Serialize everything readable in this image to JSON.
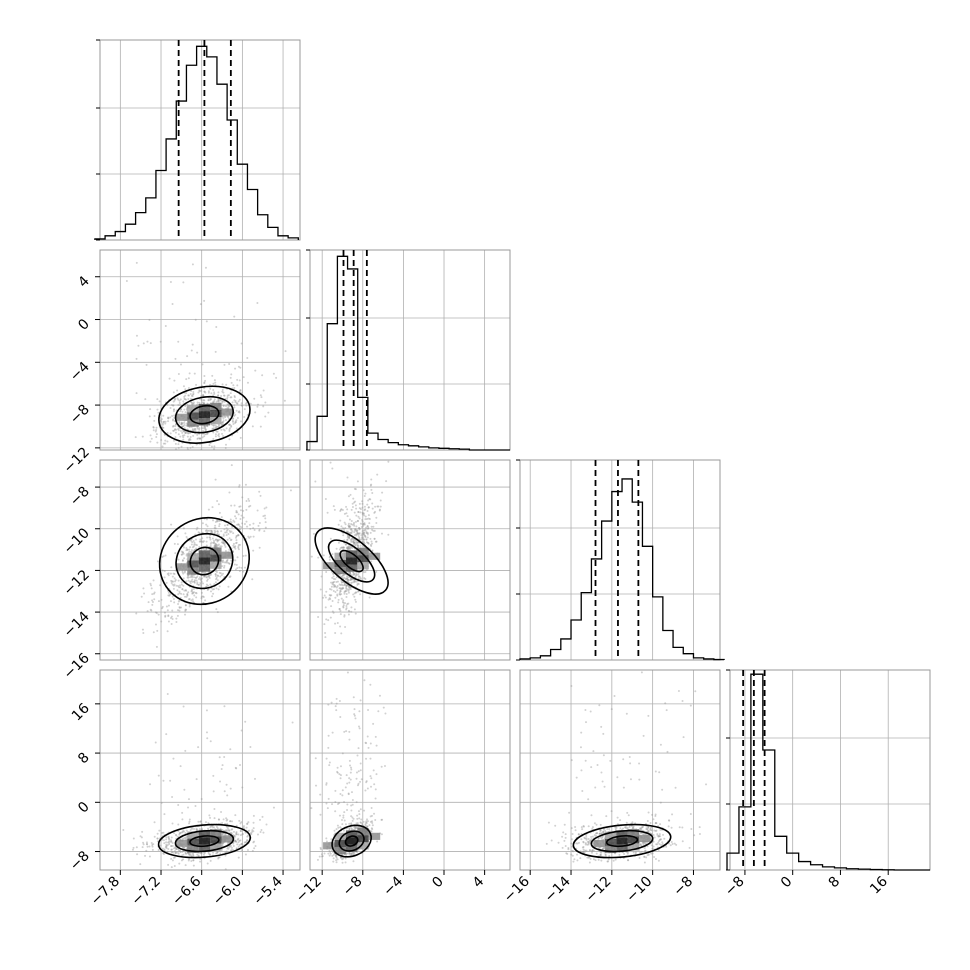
{
  "figure": {
    "type": "corner-plot",
    "colors": {
      "ink": "#000000",
      "grid": "#b0b0b0",
      "frame": "#999999",
      "scatter": "#9a9a9a"
    },
    "grid": true
  },
  "chart_data": [
    {
      "type": "histogram",
      "panel": "p1-hist",
      "row": 0,
      "col": 0,
      "xlim": [
        -8.1,
        -5.15
      ],
      "x": [
        -8.1,
        -7.95,
        -7.8,
        -7.65,
        -7.5,
        -7.35,
        -7.2,
        -7.05,
        -6.9,
        -6.75,
        -6.6,
        -6.45,
        -6.3,
        -6.15,
        -6.0,
        -5.85,
        -5.7,
        -5.55,
        -5.4,
        -5.25
      ],
      "values": [
        0.005,
        0.02,
        0.04,
        0.075,
        0.13,
        0.2,
        0.33,
        0.48,
        0.66,
        0.83,
        0.92,
        0.87,
        0.74,
        0.57,
        0.36,
        0.24,
        0.12,
        0.06,
        0.02,
        0.01
      ],
      "quantiles": [
        -6.94,
        -6.56,
        -6.17
      ]
    },
    {
      "type": "histogram",
      "panel": "p2-hist",
      "row": 1,
      "col": 1,
      "xlim": [
        -13.2,
        6.5
      ],
      "x": [
        -13.0,
        -12.0,
        -11.0,
        -10.0,
        -9.0,
        -8.0,
        -7.0,
        -6.0,
        -5.0,
        -4.0,
        -3.0,
        -2.0,
        -1.0,
        0.0,
        1.0,
        2.0,
        3.0,
        4.0,
        5.0,
        6.0
      ],
      "values": [
        0.04,
        0.16,
        0.6,
        0.92,
        0.86,
        0.25,
        0.08,
        0.05,
        0.035,
        0.025,
        0.02,
        0.015,
        0.01,
        0.008,
        0.006,
        0.004,
        0.0,
        0.0,
        0.0,
        0.0
      ],
      "quantiles": [
        -9.9,
        -8.9,
        -7.6
      ]
    },
    {
      "type": "histogram",
      "panel": "p3-hist",
      "row": 2,
      "col": 2,
      "xlim": [
        -16.5,
        -6.7
      ],
      "x": [
        -16.25,
        -15.75,
        -15.25,
        -14.75,
        -14.25,
        -13.75,
        -13.25,
        -12.75,
        -12.25,
        -11.75,
        -11.25,
        -10.75,
        -10.25,
        -9.75,
        -9.25,
        -8.75,
        -8.25,
        -7.75,
        -7.25,
        -6.75
      ],
      "values": [
        0.005,
        0.01,
        0.02,
        0.05,
        0.1,
        0.19,
        0.32,
        0.48,
        0.66,
        0.8,
        0.86,
        0.75,
        0.54,
        0.3,
        0.14,
        0.06,
        0.03,
        0.01,
        0.005,
        0.002
      ],
      "quantiles": [
        -12.8,
        -11.7,
        -10.7
      ]
    },
    {
      "type": "histogram",
      "panel": "p4-hist",
      "row": 3,
      "col": 3,
      "xlim": [
        -10.5,
        23.0
      ],
      "x": [
        -10.0,
        -8.0,
        -6.0,
        -4.0,
        -2.0,
        0.0,
        2.0,
        4.0,
        6.0,
        8.0,
        10.0,
        12.0,
        14.0,
        16.0,
        18.0,
        20.0,
        22.0
      ],
      "values": [
        0.08,
        0.3,
        0.93,
        0.57,
        0.16,
        0.08,
        0.04,
        0.025,
        0.015,
        0.01,
        0.006,
        0.004,
        0.002,
        0.001,
        0.0,
        0.0,
        0.0
      ],
      "quantiles": [
        -8.3,
        -6.5,
        -4.7
      ]
    },
    {
      "type": "scatter",
      "panel": "p2-vs-p1",
      "row": 1,
      "col": 0,
      "xlim": [
        -8.1,
        -5.15
      ],
      "ylim": [
        -12.2,
        6.5
      ],
      "center": [
        -6.56,
        -8.9
      ],
      "spread": [
        0.34,
        1.4
      ],
      "rho": 0.3,
      "tail": 0.1
    },
    {
      "type": "scatter",
      "panel": "p3-vs-p1",
      "row": 2,
      "col": 0,
      "xlim": [
        -8.1,
        -5.15
      ],
      "ylim": [
        -16.3,
        -6.7
      ],
      "center": [
        -6.56,
        -11.55
      ],
      "spread": [
        0.34,
        1.25
      ],
      "rho": 0.68,
      "tail": 0.0
    },
    {
      "type": "scatter",
      "panel": "p3-vs-p2",
      "row": 2,
      "col": 1,
      "xlim": [
        -13.2,
        6.5
      ],
      "ylim": [
        -16.3,
        -6.7
      ],
      "center": [
        -9.1,
        -11.55
      ],
      "spread": [
        1.0,
        1.25
      ],
      "rho": 0.55,
      "tail": 0.1
    },
    {
      "type": "scatter",
      "panel": "p4-vs-p1",
      "row": 3,
      "col": 0,
      "xlim": [
        -8.1,
        -5.15
      ],
      "ylim": [
        -11.0,
        21.5
      ],
      "center": [
        -6.56,
        -6.3
      ],
      "spread": [
        0.34,
        1.4
      ],
      "rho": 0.25,
      "tail": 0.1
    },
    {
      "type": "scatter",
      "panel": "p4-vs-p2",
      "row": 3,
      "col": 1,
      "xlim": [
        -13.2,
        6.5
      ],
      "ylim": [
        -11.0,
        21.5
      ],
      "center": [
        -9.1,
        -6.3
      ],
      "spread": [
        1.0,
        1.4
      ],
      "rho": 0.55,
      "tail": 0.18
    },
    {
      "type": "scatter",
      "panel": "p4-vs-p3",
      "row": 3,
      "col": 2,
      "xlim": [
        -16.5,
        -6.7
      ],
      "ylim": [
        -11.0,
        21.5
      ],
      "center": [
        -11.5,
        -6.3
      ],
      "spread": [
        1.2,
        1.4
      ],
      "rho": 0.3,
      "tail": 0.1
    }
  ],
  "axes": {
    "col_ticks": [
      [
        "−7.8",
        "−7.2",
        "−6.6",
        "−6.0",
        "−5.4"
      ],
      [
        "−12",
        "−8",
        "−4",
        "0",
        "4"
      ],
      [
        "−16",
        "−14",
        "−12",
        "−10",
        "−8"
      ],
      [
        "−8",
        "0",
        "8",
        "16"
      ]
    ],
    "col_tick_values": [
      [
        -7.8,
        -7.2,
        -6.6,
        -6.0,
        -5.4
      ],
      [
        -12,
        -8,
        -4,
        0,
        4
      ],
      [
        -16,
        -14,
        -12,
        -10,
        -8
      ],
      [
        -8,
        0,
        8,
        16
      ]
    ],
    "row_ticks": [
      [],
      [
        "−12",
        "−8",
        "−4",
        "0",
        "4"
      ],
      [
        "−16",
        "−14",
        "−12",
        "−10",
        "−8"
      ],
      [
        "−8",
        "0",
        "8",
        "16"
      ]
    ],
    "row_tick_values": [
      [],
      [
        -12,
        -8,
        -4,
        0,
        4
      ],
      [
        -16,
        -14,
        -12,
        -10,
        -8
      ],
      [
        -8,
        0,
        8,
        16
      ]
    ]
  }
}
